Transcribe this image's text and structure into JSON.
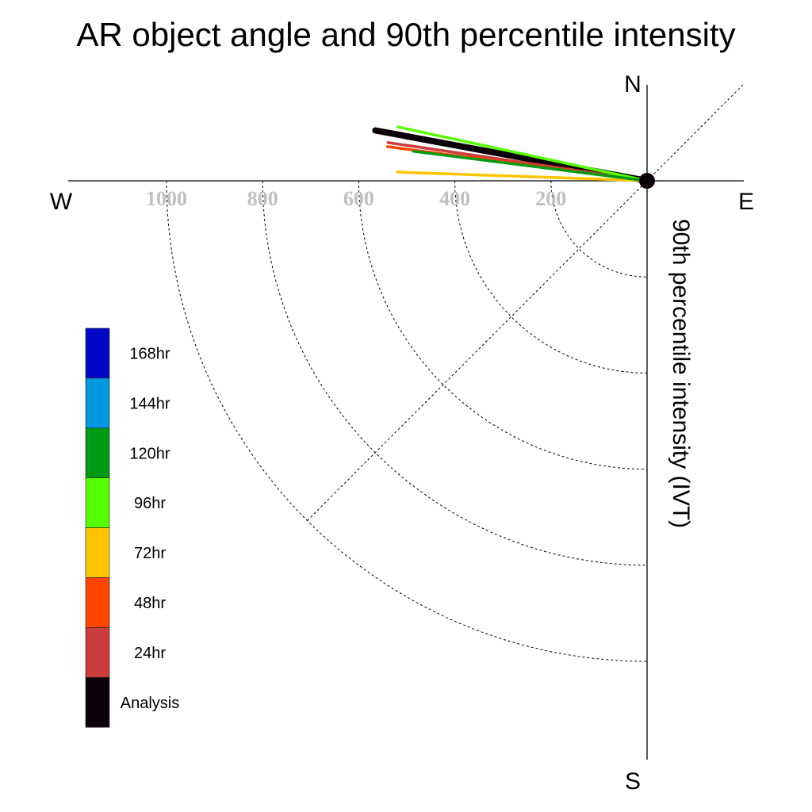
{
  "chart_data": {
    "type": "polar-vector",
    "title": "AR object angle and 90th percentile intensity",
    "radial_axis_label": "90th percentile intensity (IVT)",
    "compass": {
      "north": "N",
      "south": "S",
      "east": "E",
      "west": "W"
    },
    "radial_ticks": [
      {
        "value": 200,
        "label": "200"
      },
      {
        "value": 400,
        "label": "400"
      },
      {
        "value": 600,
        "label": "600"
      },
      {
        "value": 800,
        "label": "800"
      },
      {
        "value": 1000,
        "label": "1000"
      }
    ],
    "radial_max": 1200,
    "angle_units": "degrees counterclockwise from W",
    "series": [
      {
        "name": "Analysis",
        "color": "#0b0008",
        "angle": -10.5,
        "intensity": 575
      },
      {
        "name": "24hr",
        "color": "#cc3c3c",
        "angle": -8.4,
        "intensity": 545
      },
      {
        "name": "48hr",
        "color": "#ff4500",
        "angle": -7.5,
        "intensity": 545
      },
      {
        "name": "72hr",
        "color": "#ffc400",
        "angle": -2.0,
        "intensity": 520
      },
      {
        "name": "96hr",
        "color": "#55ff00",
        "angle": -12.2,
        "intensity": 530
      },
      {
        "name": "120hr",
        "color": "#009b14",
        "angle": -7.2,
        "intensity": 490
      }
    ],
    "legend": [
      {
        "label": "168hr",
        "color": "#0008c6"
      },
      {
        "label": "144hr",
        "color": "#0098df"
      },
      {
        "label": "120hr",
        "color": "#009b14"
      },
      {
        "label": "96hr",
        "color": "#55ff00"
      },
      {
        "label": "72hr",
        "color": "#ffc400"
      },
      {
        "label": "48hr",
        "color": "#ff4500"
      },
      {
        "label": "24hr",
        "color": "#cc3c3c"
      },
      {
        "label": "Analysis",
        "color": "#0b0008"
      }
    ]
  }
}
